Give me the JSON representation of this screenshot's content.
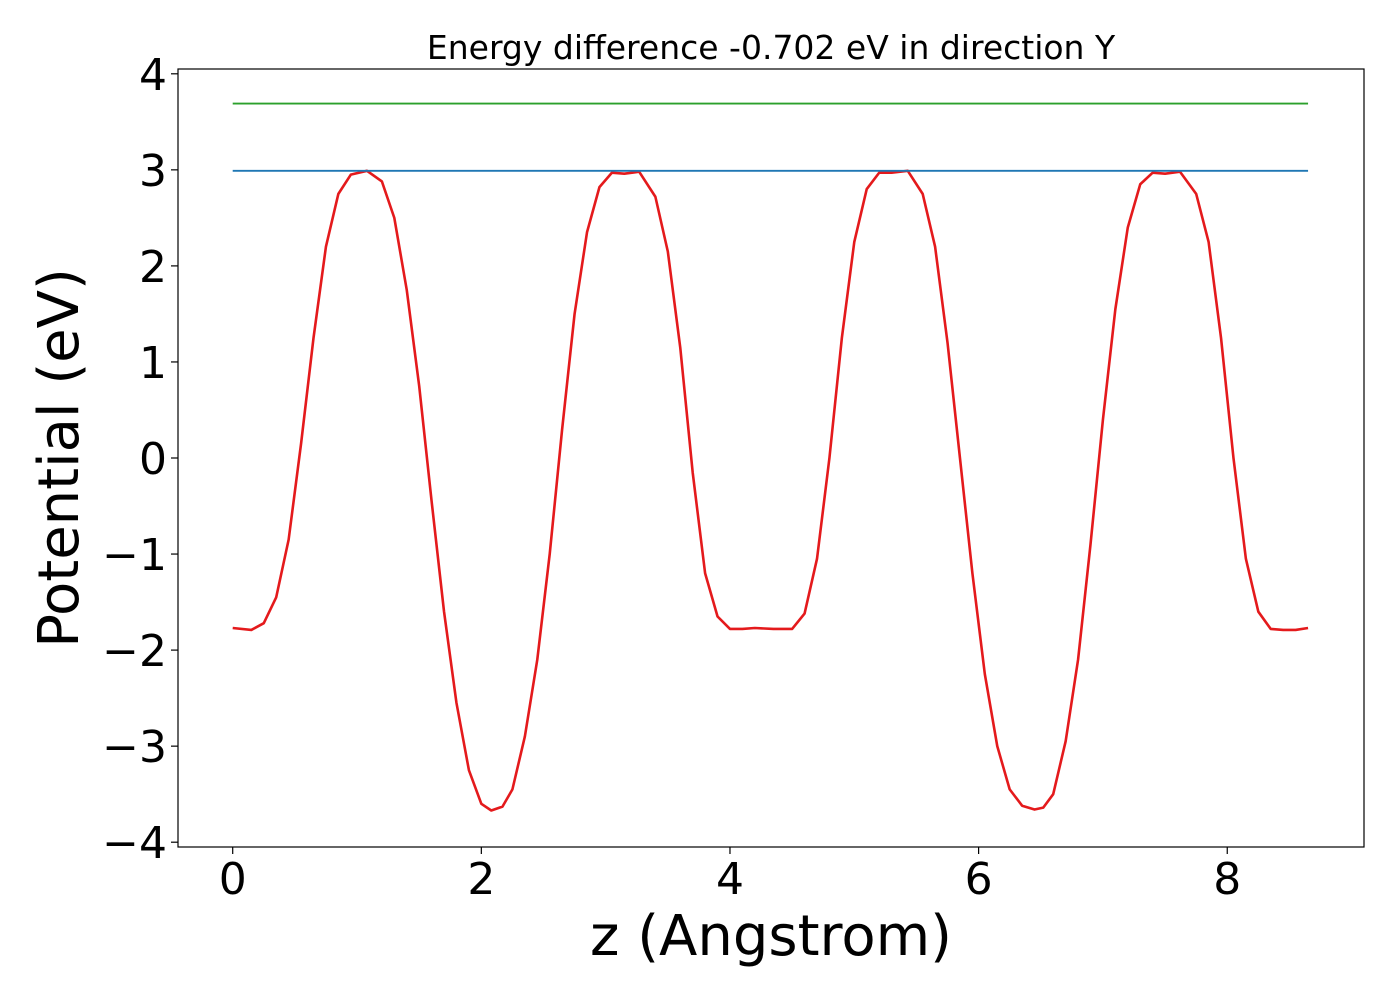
{
  "chart_data": {
    "type": "line",
    "title": "Energy difference -0.702 eV in direction Y",
    "xlabel": "z (Angstrom)",
    "ylabel": "Potential (eV)",
    "xlim": [
      -0.44,
      9.1
    ],
    "ylim": [
      -4.05,
      4.05
    ],
    "xticks": [
      0,
      2,
      4,
      6,
      8
    ],
    "yticks": [
      4,
      3,
      2,
      1,
      0,
      -1,
      -2,
      -3,
      -4
    ],
    "xtick_labels": [
      "0",
      "2",
      "4",
      "6",
      "8"
    ],
    "ytick_labels": [
      "4",
      "3",
      "2",
      "1",
      "0",
      "−1",
      "−2",
      "−3",
      "−4"
    ],
    "grid": false,
    "legend": "none",
    "series": [
      {
        "name": "planar-averaged potential",
        "color": "#e41a1c",
        "x": [
          0.0,
          0.15,
          0.25,
          0.35,
          0.45,
          0.55,
          0.65,
          0.75,
          0.85,
          0.95,
          1.08,
          1.2,
          1.3,
          1.4,
          1.5,
          1.6,
          1.7,
          1.8,
          1.9,
          2.0,
          2.08,
          2.17,
          2.25,
          2.35,
          2.45,
          2.55,
          2.65,
          2.75,
          2.85,
          2.95,
          3.05,
          3.15,
          3.27,
          3.4,
          3.5,
          3.6,
          3.7,
          3.8,
          3.9,
          4.0,
          4.1,
          4.2,
          4.35,
          4.5,
          4.6,
          4.7,
          4.8,
          4.9,
          5.0,
          5.1,
          5.2,
          5.3,
          5.43,
          5.55,
          5.65,
          5.75,
          5.85,
          5.95,
          6.05,
          6.15,
          6.25,
          6.35,
          6.45,
          6.52,
          6.6,
          6.7,
          6.8,
          6.9,
          7.0,
          7.1,
          7.2,
          7.3,
          7.4,
          7.5,
          7.62,
          7.75,
          7.85,
          7.95,
          8.05,
          8.15,
          8.25,
          8.35,
          8.45,
          8.55,
          8.65
        ],
        "y": [
          -1.77,
          -1.79,
          -1.72,
          -1.45,
          -0.85,
          0.15,
          1.25,
          2.2,
          2.75,
          2.95,
          2.99,
          2.88,
          2.5,
          1.75,
          0.75,
          -0.45,
          -1.6,
          -2.55,
          -3.25,
          -3.6,
          -3.67,
          -3.63,
          -3.45,
          -2.9,
          -2.1,
          -1.0,
          0.3,
          1.5,
          2.35,
          2.82,
          2.97,
          2.96,
          2.98,
          2.72,
          2.15,
          1.15,
          -0.15,
          -1.2,
          -1.65,
          -1.78,
          -1.78,
          -1.77,
          -1.78,
          -1.78,
          -1.62,
          -1.05,
          0.0,
          1.25,
          2.25,
          2.8,
          2.97,
          2.97,
          2.99,
          2.75,
          2.2,
          1.2,
          0.0,
          -1.2,
          -2.25,
          -3.0,
          -3.45,
          -3.62,
          -3.66,
          -3.64,
          -3.5,
          -2.95,
          -2.1,
          -0.9,
          0.4,
          1.55,
          2.4,
          2.85,
          2.97,
          2.96,
          2.98,
          2.75,
          2.25,
          1.25,
          0.0,
          -1.05,
          -1.6,
          -1.78,
          -1.79,
          -1.79,
          -1.77
        ]
      },
      {
        "name": "upper level",
        "color": "#2ca02c",
        "x": [
          0.0,
          8.65
        ],
        "y": [
          3.69,
          3.69
        ]
      },
      {
        "name": "max potential level",
        "color": "#1f77b4",
        "x": [
          0.0,
          8.65
        ],
        "y": [
          2.99,
          2.99
        ]
      }
    ]
  }
}
